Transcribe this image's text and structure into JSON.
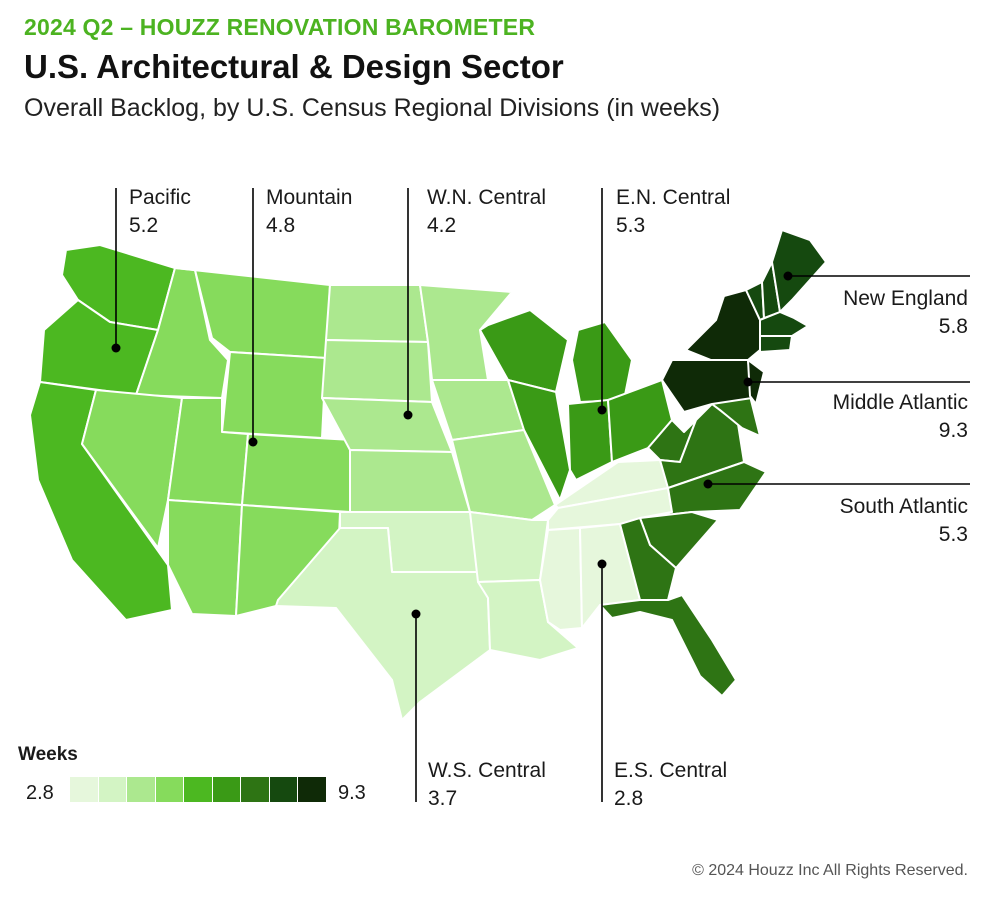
{
  "header": {
    "kicker": "2024 Q2 – HOUZZ RENOVATION BAROMETER",
    "title": "U.S. Architectural & Design Sector",
    "subtitle": "Overall Backlog, by U.S. Census Regional Divisions (in weeks)"
  },
  "colors": {
    "kicker": "#4cb321",
    "state_border": "#ffffff",
    "leader_line": "#000000",
    "scale": [
      "#e6f7dc",
      "#d3f4c4",
      "#ace88f",
      "#86db5c",
      "#4cb821",
      "#3a9a16",
      "#2e7414",
      "#15490f",
      "#0f2a07"
    ]
  },
  "chart_data": {
    "type": "choropleth",
    "title": "U.S. Architectural & Design Sector",
    "subtitle": "Overall Backlog, by U.S. Census Regional Divisions (in weeks)",
    "unit": "weeks",
    "regions": [
      {
        "name": "Pacific",
        "value": "5.2",
        "color": "#4cb821"
      },
      {
        "name": "Mountain",
        "value": "4.8",
        "color": "#86db5c"
      },
      {
        "name": "W.N. Central",
        "value": "4.2",
        "color": "#ace88f"
      },
      {
        "name": "E.N. Central",
        "value": "5.3",
        "color": "#3a9a16"
      },
      {
        "name": "New England",
        "value": "5.8",
        "color": "#15490f"
      },
      {
        "name": "Middle Atlantic",
        "value": "9.3",
        "color": "#0f2a07"
      },
      {
        "name": "South Atlantic",
        "value": "5.3",
        "color": "#2e7414"
      },
      {
        "name": "W.S. Central",
        "value": "3.7",
        "color": "#d3f4c4"
      },
      {
        "name": "E.S. Central",
        "value": "2.8",
        "color": "#e6f7dc"
      }
    ],
    "legend": {
      "title": "Weeks",
      "min": "2.8",
      "max": "9.3"
    }
  },
  "footer": {
    "copyright": "© 2024 Houzz Inc All Rights Reserved."
  }
}
